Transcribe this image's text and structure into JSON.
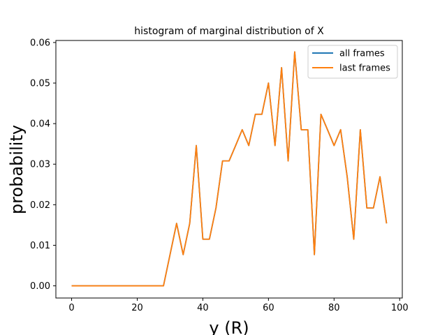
{
  "chart_data": {
    "type": "line",
    "title": "histogram of marginal distribution of X",
    "xlabel": "y (R)",
    "ylabel": "probability",
    "xlim": [
      -4.8,
      100.8
    ],
    "ylim": [
      -0.003,
      0.0605
    ],
    "xticks": [
      0,
      20,
      40,
      60,
      80,
      100
    ],
    "xtick_labels": [
      "0",
      "20",
      "40",
      "60",
      "80",
      "100"
    ],
    "yticks": [
      0.0,
      0.01,
      0.02,
      0.03,
      0.04,
      0.05,
      0.06
    ],
    "ytick_labels": [
      "0.00",
      "0.01",
      "0.02",
      "0.03",
      "0.04",
      "0.05",
      "0.06"
    ],
    "grid": false,
    "legend_position": "top-right",
    "x": [
      0,
      2,
      4,
      6,
      8,
      10,
      12,
      14,
      16,
      18,
      20,
      22,
      24,
      26,
      28,
      30,
      32,
      34,
      36,
      38,
      40,
      42,
      44,
      46,
      48,
      50,
      52,
      54,
      56,
      58,
      60,
      62,
      64,
      66,
      68,
      70,
      72,
      74,
      76,
      78,
      80,
      82,
      84,
      86,
      88,
      90,
      92,
      94,
      96
    ],
    "series": [
      {
        "name": "all frames",
        "color": "#1f77b4",
        "values": [
          0,
          0,
          0,
          0,
          0,
          0,
          0,
          0,
          0,
          0,
          0,
          0,
          0,
          0,
          0,
          0.0077,
          0.0154,
          0.0077,
          0.0154,
          0.0346,
          0.0115,
          0.0115,
          0.0192,
          0.0308,
          0.0308,
          0.0346,
          0.0385,
          0.0346,
          0.0423,
          0.0423,
          0.05,
          0.0346,
          0.0538,
          0.0308,
          0.0577,
          0.0385,
          0.0385,
          0.0077,
          0.0423,
          0.0385,
          0.0346,
          0.0385,
          0.0269,
          0.0115,
          0.0385,
          0.0192,
          0.0192,
          0.0269,
          0.0154
        ]
      },
      {
        "name": "last frames",
        "color": "#ff7f0e",
        "values": [
          0,
          0,
          0,
          0,
          0,
          0,
          0,
          0,
          0,
          0,
          0,
          0,
          0,
          0,
          0,
          0.0077,
          0.0154,
          0.0077,
          0.0154,
          0.0346,
          0.0115,
          0.0115,
          0.0192,
          0.0308,
          0.0308,
          0.0346,
          0.0385,
          0.0346,
          0.0423,
          0.0423,
          0.05,
          0.0346,
          0.0538,
          0.0308,
          0.0577,
          0.0385,
          0.0385,
          0.0077,
          0.0423,
          0.0385,
          0.0346,
          0.0385,
          0.0269,
          0.0115,
          0.0385,
          0.0192,
          0.0192,
          0.0269,
          0.0154
        ]
      }
    ]
  }
}
